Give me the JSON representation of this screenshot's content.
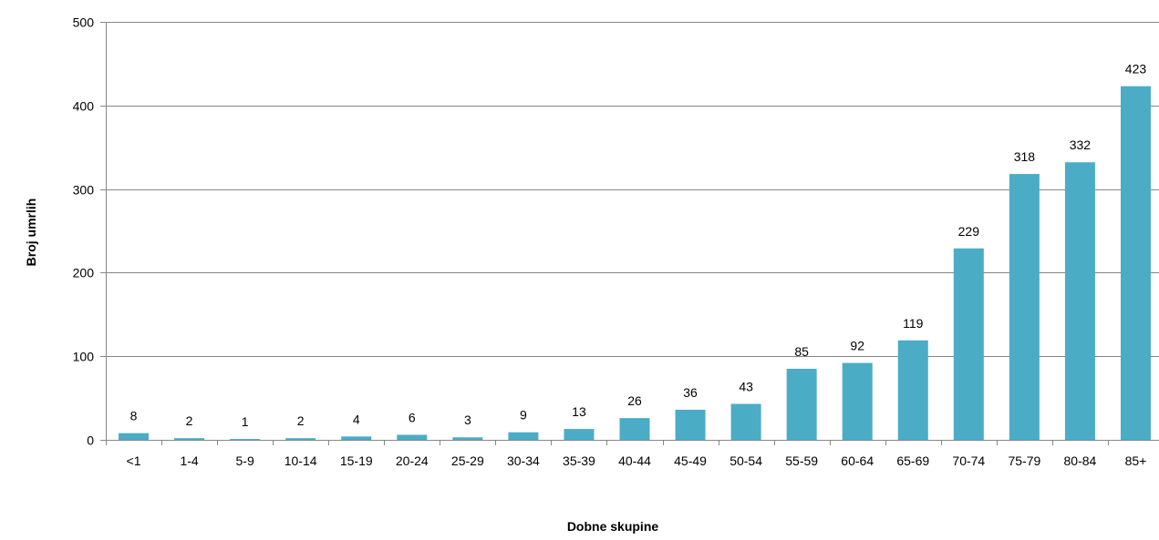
{
  "chart_data": {
    "type": "bar",
    "title": "",
    "xlabel": "Dobne skupine",
    "ylabel": "Broj umrlih",
    "categories": [
      "<1",
      "1-4",
      "5-9",
      "10-14",
      "15-19",
      "20-24",
      "25-29",
      "30-34",
      "35-39",
      "40-44",
      "45-49",
      "50-54",
      "55-59",
      "60-64",
      "65-69",
      "70-74",
      "75-79",
      "80-84",
      "85+"
    ],
    "values": [
      8,
      2,
      1,
      2,
      4,
      6,
      3,
      9,
      13,
      26,
      36,
      43,
      85,
      92,
      119,
      229,
      318,
      332,
      423
    ],
    "ylim": [
      0,
      500
    ],
    "yticks": [
      0,
      100,
      200,
      300,
      400,
      500
    ],
    "grid": true,
    "legend": "none",
    "bar_color": "#4bacc6",
    "grid_color": "#868686",
    "axis_color": "#868686"
  }
}
